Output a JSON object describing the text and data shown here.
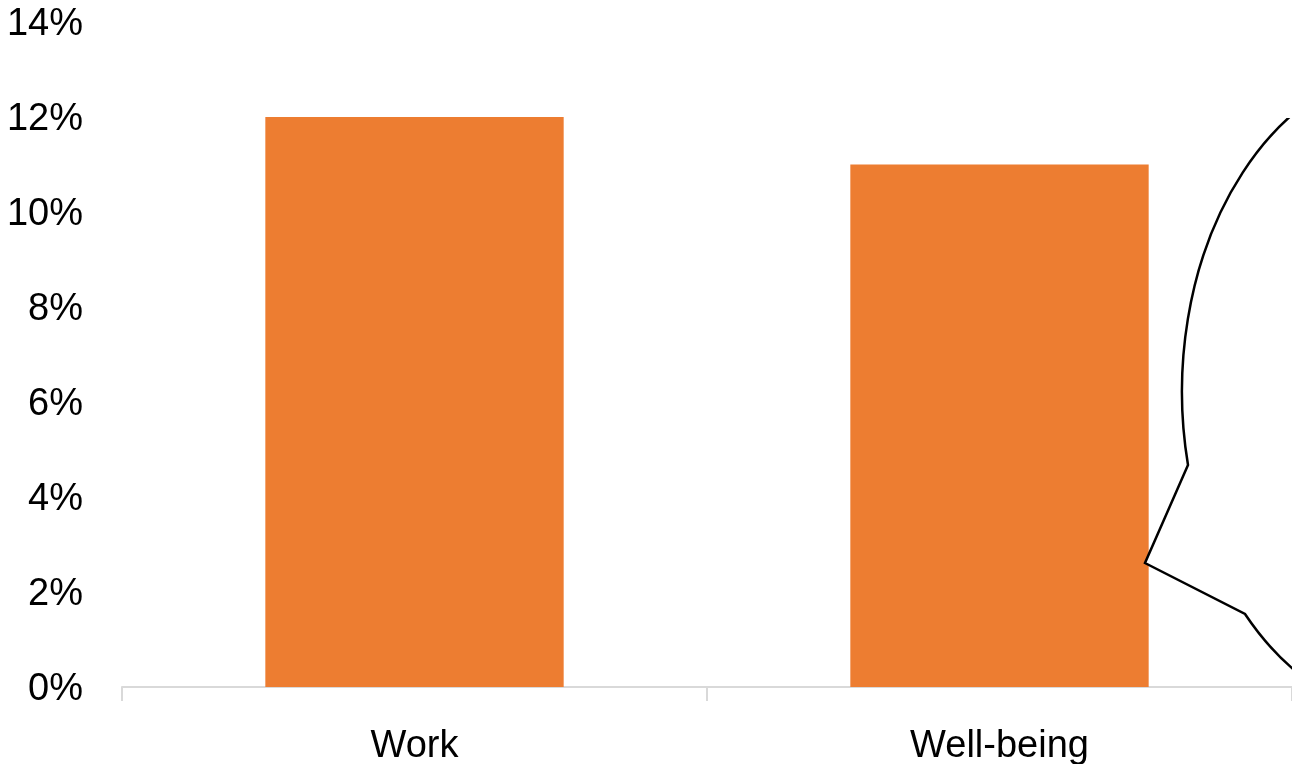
{
  "chart_data": {
    "type": "bar",
    "categories": [
      "Work",
      "Well-being"
    ],
    "values": [
      12,
      11
    ],
    "color": "#ed7d31",
    "ylim": [
      0,
      14
    ],
    "yticks": [
      {
        "value": 0,
        "label": "0%"
      },
      {
        "value": 2,
        "label": "2%"
      },
      {
        "value": 4,
        "label": "4%"
      },
      {
        "value": 6,
        "label": "6%"
      },
      {
        "value": 8,
        "label": "8%"
      },
      {
        "value": 10,
        "label": "10%"
      },
      {
        "value": 12,
        "label": "12%"
      },
      {
        "value": 14,
        "label": "14%"
      }
    ],
    "grid": false
  }
}
